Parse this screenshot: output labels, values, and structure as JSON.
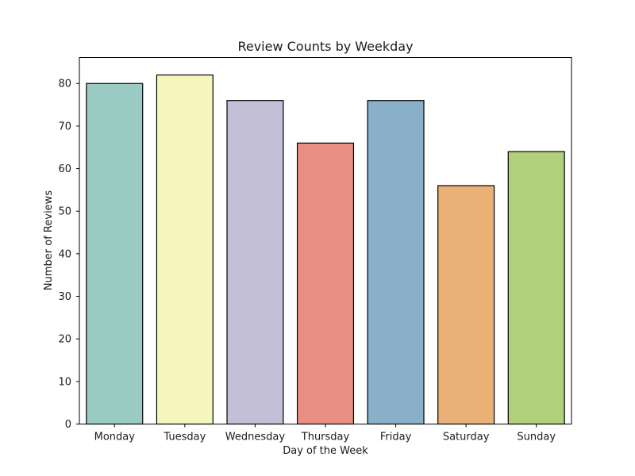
{
  "chart_data": {
    "type": "bar",
    "title": "Review Counts by Weekday",
    "xlabel": "Day of the Week",
    "ylabel": "Number of Reviews",
    "categories": [
      "Monday",
      "Tuesday",
      "Wednesday",
      "Thursday",
      "Friday",
      "Saturday",
      "Sunday"
    ],
    "values": [
      80,
      82,
      76,
      66,
      76,
      56,
      64
    ],
    "colors": [
      "#99cbc2",
      "#f5f5bd",
      "#c2bfd6",
      "#e98e83",
      "#8aafc8",
      "#e9b176",
      "#b0d07c"
    ],
    "edge_color": "#000000",
    "ylim": [
      0,
      86.1
    ],
    "yticks": [
      0,
      10,
      20,
      30,
      40,
      50,
      60,
      70,
      80
    ],
    "grid": false,
    "legend": "none"
  }
}
